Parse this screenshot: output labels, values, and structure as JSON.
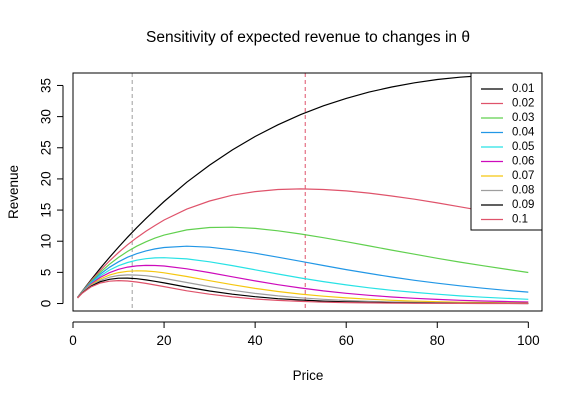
{
  "chart_data": {
    "type": "line",
    "title": "Sensitivity of expected revenue to changes in θ",
    "xlabel": "Price",
    "ylabel": "Revenue",
    "xlim": [
      0,
      103
    ],
    "ylim": [
      -1.2,
      37
    ],
    "x_ticks": [
      "0",
      "20",
      "40",
      "60",
      "80",
      "100"
    ],
    "y_ticks": [
      "0",
      "5",
      "10",
      "15",
      "20",
      "25",
      "30",
      "35"
    ],
    "grid": false,
    "legend_position": "top-right",
    "x": [
      1,
      2,
      4,
      6,
      8,
      10,
      12,
      14,
      16,
      18,
      20,
      25,
      30,
      35,
      40,
      45,
      50,
      55,
      60,
      65,
      70,
      75,
      80,
      85,
      90,
      95,
      100
    ],
    "series": [
      {
        "name": "0.01",
        "color": "#000000",
        "values": [
          0.99,
          1.96,
          3.84,
          5.65,
          7.39,
          9.05,
          10.64,
          12.17,
          13.63,
          15.02,
          16.37,
          19.47,
          22.22,
          24.66,
          26.81,
          28.69,
          30.33,
          31.74,
          32.93,
          33.93,
          34.76,
          35.43,
          35.95,
          36.33,
          36.59,
          36.74,
          36.79
        ]
      },
      {
        "name": "0.02",
        "color": "#DF536B",
        "values": [
          0.98,
          1.92,
          3.69,
          5.32,
          6.82,
          8.19,
          9.44,
          10.57,
          11.6,
          12.52,
          13.41,
          15.16,
          16.46,
          17.38,
          17.97,
          18.3,
          18.39,
          18.3,
          18.07,
          17.72,
          17.26,
          16.74,
          16.15,
          15.53,
          14.88,
          14.23,
          13.53
        ]
      },
      {
        "name": "0.03",
        "color": "#61D04F",
        "values": [
          0.97,
          1.88,
          3.55,
          5.01,
          6.29,
          7.41,
          8.37,
          9.2,
          9.9,
          10.5,
          10.98,
          11.81,
          12.2,
          12.25,
          12.05,
          11.68,
          11.16,
          10.57,
          9.92,
          9.25,
          8.57,
          7.91,
          7.26,
          6.65,
          6.07,
          5.53,
          4.98
        ]
      },
      {
        "name": "0.04",
        "color": "#2297E6",
        "values": [
          0.96,
          1.85,
          3.41,
          4.72,
          5.81,
          6.7,
          7.43,
          8.0,
          8.44,
          8.76,
          8.99,
          9.2,
          9.04,
          8.63,
          8.07,
          7.44,
          6.77,
          6.1,
          5.44,
          4.83,
          4.26,
          3.73,
          3.26,
          2.84,
          2.46,
          2.13,
          1.83
        ]
      },
      {
        "name": "0.05",
        "color": "#28E2E5",
        "values": [
          0.95,
          1.81,
          3.27,
          4.44,
          5.36,
          6.07,
          6.59,
          6.95,
          7.19,
          7.32,
          7.36,
          7.16,
          6.69,
          6.08,
          5.41,
          4.74,
          4.1,
          3.52,
          2.99,
          2.53,
          2.13,
          1.78,
          1.49,
          1.23,
          1.02,
          0.84,
          0.67
        ]
      },
      {
        "name": "0.06",
        "color": "#CD0BBC",
        "values": [
          0.94,
          1.77,
          3.15,
          4.19,
          4.95,
          5.49,
          5.84,
          6.04,
          6.12,
          6.11,
          6.02,
          5.58,
          4.96,
          4.29,
          3.63,
          3.02,
          2.49,
          2.03,
          1.64,
          1.32,
          1.05,
          0.84,
          0.66,
          0.52,
          0.41,
          0.32,
          0.25
        ]
      },
      {
        "name": "0.07",
        "color": "#F5C710",
        "values": [
          0.93,
          1.74,
          3.02,
          3.94,
          4.57,
          4.97,
          5.18,
          5.25,
          5.22,
          5.11,
          4.93,
          4.34,
          3.67,
          3.02,
          2.43,
          1.93,
          1.51,
          1.17,
          0.9,
          0.69,
          0.52,
          0.39,
          0.29,
          0.22,
          0.16,
          0.12,
          0.09
        ]
      },
      {
        "name": "0.08",
        "color": "#9E9E9E",
        "values": [
          0.92,
          1.7,
          2.91,
          3.71,
          4.22,
          4.49,
          4.59,
          4.57,
          4.46,
          4.27,
          4.04,
          3.38,
          2.72,
          2.13,
          1.63,
          1.23,
          0.92,
          0.68,
          0.49,
          0.36,
          0.26,
          0.19,
          0.13,
          0.09,
          0.07,
          0.05,
          0.03
        ]
      },
      {
        "name": "0.09",
        "color": "#000000",
        "values": [
          0.91,
          1.67,
          2.79,
          3.5,
          3.89,
          4.07,
          4.08,
          3.98,
          3.79,
          3.56,
          3.31,
          2.63,
          2.01,
          1.5,
          1.09,
          0.78,
          0.56,
          0.39,
          0.27,
          0.19,
          0.13,
          0.09,
          0.06,
          0.04,
          0.03,
          0.02,
          0.01
        ]
      },
      {
        "name": "0.1",
        "color": "#DF536B",
        "values": [
          0.9,
          1.64,
          2.68,
          3.29,
          3.59,
          3.68,
          3.61,
          3.45,
          3.23,
          2.98,
          2.71,
          2.05,
          1.49,
          1.06,
          0.73,
          0.5,
          0.34,
          0.22,
          0.15,
          0.1,
          0.06,
          0.04,
          0.03,
          0.02,
          0.01,
          0.01,
          0.0
        ]
      }
    ],
    "reference_lines": [
      {
        "orientation": "vertical",
        "x": 13,
        "style": "dashed",
        "color": "#9E9E9E"
      },
      {
        "orientation": "vertical",
        "x": 51,
        "style": "dashed",
        "color": "#DF536B"
      }
    ]
  }
}
